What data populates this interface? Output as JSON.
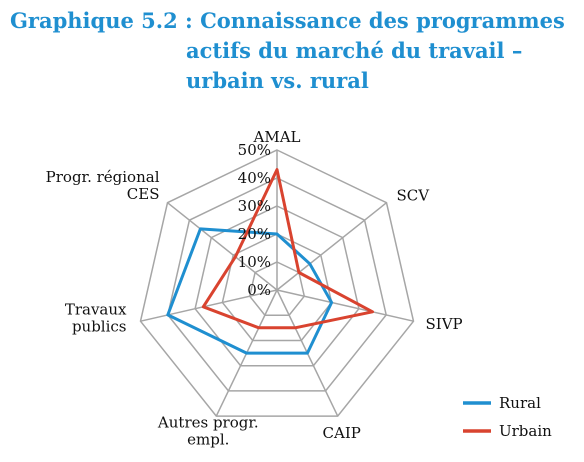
{
  "title": {
    "line1": "Graphique 5.2 : Connaissance des programmes",
    "line2": "actifs du marché du travail –",
    "line3": "urbain vs. rural"
  },
  "chart_data": {
    "type": "radar",
    "categories": [
      [
        "AMAL"
      ],
      [
        "SCV"
      ],
      [
        "SIVP"
      ],
      [
        "CAIP"
      ],
      [
        "Autres progr.",
        "empl."
      ],
      [
        "Travaux",
        "publics"
      ],
      [
        "Progr. régional",
        "CES"
      ]
    ],
    "tick_labels": [
      "0%",
      "10%",
      "20%",
      "30%",
      "40%",
      "50%"
    ],
    "rlim": [
      0,
      50
    ],
    "grid": true,
    "legend_position": "bottom-right",
    "series": [
      {
        "name": "Rural",
        "color": "#1f8fd0",
        "values": [
          20,
          15,
          20,
          25,
          25,
          40,
          35
        ]
      },
      {
        "name": "Urbain",
        "color": "#d9432f",
        "values": [
          43,
          10,
          35,
          15,
          15,
          27,
          19
        ]
      }
    ]
  }
}
